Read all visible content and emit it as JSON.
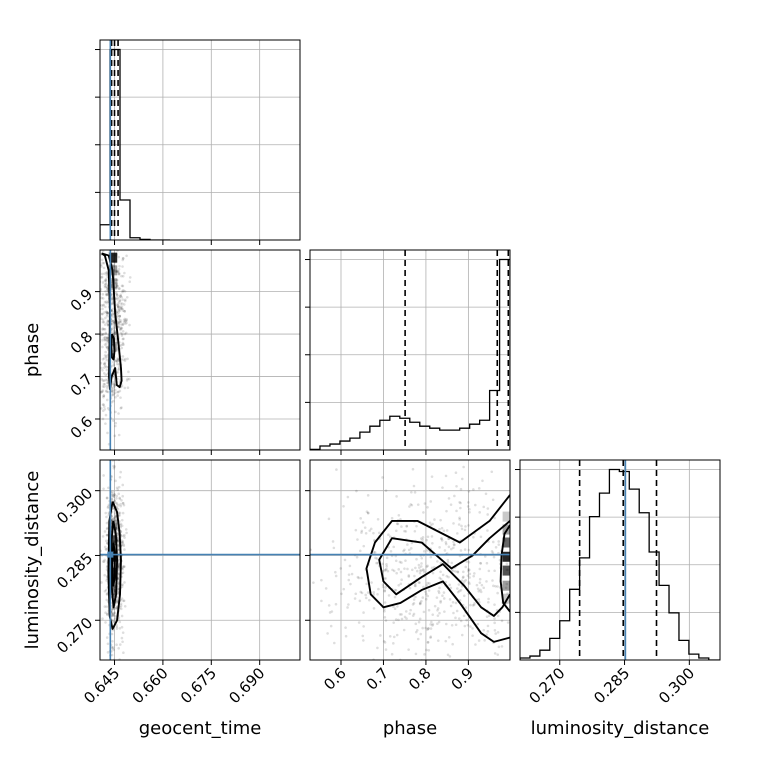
{
  "chart_data": {
    "type": "corner",
    "parameters": [
      "geocent_time",
      "phase",
      "luminosity_distance"
    ],
    "axis_labels": {
      "geocent_time": "geocent_time",
      "phase": "phase",
      "luminosity_distance": "luminosity_distance"
    },
    "ranges": {
      "geocent_time": [
        0.6405,
        0.7025
      ],
      "phase": [
        0.527,
        0.998
      ],
      "luminosity_distance": [
        0.2608,
        0.3071
      ]
    },
    "ticks": {
      "geocent_time": [
        {
          "value": 0.645,
          "label": "0.645"
        },
        {
          "value": 0.66,
          "label": "0.660"
        },
        {
          "value": 0.675,
          "label": "0.675"
        },
        {
          "value": 0.69,
          "label": "0.690"
        }
      ],
      "phase": [
        {
          "value": 0.6,
          "label": "0.6"
        },
        {
          "value": 0.7,
          "label": "0.7"
        },
        {
          "value": 0.8,
          "label": "0.8"
        },
        {
          "value": 0.9,
          "label": "0.9"
        }
      ],
      "luminosity_distance": [
        {
          "value": 0.27,
          "label": "0.270"
        },
        {
          "value": 0.285,
          "label": "0.285"
        },
        {
          "value": 0.3,
          "label": "0.300"
        }
      ]
    },
    "truths": {
      "geocent_time": 0.6437,
      "luminosity_distance": 0.2852
    },
    "quantiles": {
      "geocent_time": [
        0.6441,
        0.645,
        0.6461
      ],
      "phase": [
        0.751,
        0.968,
        0.994
      ],
      "luminosity_distance": [
        0.2746,
        0.2847,
        0.2924
      ]
    },
    "histograms": {
      "geocent_time": {
        "edges": [
          0.6405,
          0.6436,
          0.6467,
          0.6498,
          0.6529,
          0.656,
          0.6591,
          0.6622
        ],
        "counts": [
          0.08,
          1.0,
          0.21,
          0.012,
          0.003,
          0.0,
          0.0
        ]
      },
      "phase": {
        "edges": [
          0.527,
          0.5505,
          0.574,
          0.5975,
          0.621,
          0.6445,
          0.668,
          0.6915,
          0.715,
          0.7385,
          0.762,
          0.7855,
          0.809,
          0.8325,
          0.856,
          0.8795,
          0.903,
          0.9265,
          0.95,
          0.9735,
          0.998
        ],
        "counts": [
          0.003,
          0.02,
          0.03,
          0.045,
          0.06,
          0.09,
          0.12,
          0.15,
          0.17,
          0.16,
          0.14,
          0.12,
          0.11,
          0.1,
          0.1,
          0.11,
          0.13,
          0.15,
          0.3,
          0.96
        ]
      },
      "luminosity_distance": {
        "edges": [
          0.2608,
          0.2631,
          0.2654,
          0.2677,
          0.27,
          0.2723,
          0.2746,
          0.2769,
          0.2792,
          0.2815,
          0.2838,
          0.2861,
          0.2884,
          0.2907,
          0.293,
          0.2953,
          0.2976,
          0.2999,
          0.3022,
          0.3045,
          0.3071
        ],
        "counts": [
          0.01,
          0.02,
          0.05,
          0.11,
          0.2,
          0.36,
          0.52,
          0.73,
          0.85,
          0.97,
          0.96,
          0.87,
          0.75,
          0.55,
          0.38,
          0.24,
          0.1,
          0.03,
          0.01,
          0.0
        ]
      }
    },
    "contours_2d": {
      "phase_vs_geocent_time": [
        {
          "x": [
            0.641,
            0.6432,
            0.6444,
            0.6452,
            0.6462,
            0.647,
            0.6472,
            0.6466,
            0.6457,
            0.6452,
            0.6441,
            0.6436,
            0.6433,
            0.6436,
            0.6432,
            0.642,
            0.641
          ],
          "y": [
            0.99,
            0.985,
            0.95,
            0.85,
            0.78,
            0.72,
            0.69,
            0.675,
            0.68,
            0.72,
            0.7,
            0.67,
            0.7,
            0.85,
            0.95,
            0.985,
            0.99
          ]
        },
        {
          "x": [
            0.6442,
            0.6448,
            0.645,
            0.6447,
            0.6442,
            0.644,
            0.6442
          ],
          "y": [
            0.8,
            0.79,
            0.76,
            0.74,
            0.745,
            0.77,
            0.8
          ]
        }
      ],
      "luminosity_distance_vs_geocent_time": [
        {
          "x": [
            0.6444,
            0.6458,
            0.6466,
            0.647,
            0.6467,
            0.6458,
            0.6444,
            0.6435,
            0.6431,
            0.6434,
            0.6444
          ],
          "y": [
            0.2975,
            0.295,
            0.29,
            0.284,
            0.276,
            0.27,
            0.268,
            0.271,
            0.281,
            0.293,
            0.2975
          ]
        },
        {
          "x": [
            0.6446,
            0.6454,
            0.6458,
            0.6455,
            0.6447,
            0.6441,
            0.644,
            0.6446
          ],
          "y": [
            0.293,
            0.29,
            0.284,
            0.276,
            0.273,
            0.278,
            0.288,
            0.293
          ]
        },
        {
          "x": [
            0.6446,
            0.6451,
            0.6451,
            0.6446,
            0.6443,
            0.6446
          ],
          "y": [
            0.288,
            0.286,
            0.28,
            0.278,
            0.283,
            0.288
          ]
        }
      ],
      "luminosity_distance_vs_phase": [
        {
          "x": [
            0.998,
            0.95,
            0.88,
            0.84,
            0.78,
            0.72,
            0.68,
            0.66,
            0.67,
            0.7,
            0.74,
            0.79,
            0.84,
            0.88,
            0.93,
            0.96,
            0.998
          ],
          "y": [
            0.299,
            0.293,
            0.288,
            0.29,
            0.293,
            0.293,
            0.288,
            0.282,
            0.276,
            0.273,
            0.274,
            0.277,
            0.279,
            0.274,
            0.267,
            0.265,
            0.266
          ]
        },
        {
          "x": [
            0.998,
            0.95,
            0.91,
            0.86,
            0.79,
            0.72,
            0.69,
            0.7,
            0.73,
            0.79,
            0.84,
            0.89,
            0.93,
            0.96,
            0.98,
            0.998
          ],
          "y": [
            0.293,
            0.289,
            0.285,
            0.282,
            0.288,
            0.289,
            0.284,
            0.279,
            0.276,
            0.28,
            0.283,
            0.278,
            0.273,
            0.271,
            0.273,
            0.276
          ]
        },
        {
          "x": [
            0.998,
            0.985,
            0.978,
            0.976,
            0.982,
            0.998
          ],
          "y": [
            0.292,
            0.29,
            0.285,
            0.279,
            0.274,
            0.272
          ]
        }
      ]
    },
    "density_2d": {
      "phase_vs_geocent_time": [
        {
          "x": 0.6446,
          "y": 0.98,
          "w": 1.0
        },
        {
          "x": 0.6446,
          "y": 0.95,
          "w": 0.45
        },
        {
          "x": 0.6446,
          "y": 0.92,
          "w": 0.3
        },
        {
          "x": 0.6446,
          "y": 0.77,
          "w": 0.25
        }
      ],
      "luminosity_distance_vs_geocent_time": [
        {
          "x": 0.6446,
          "y": 0.2847,
          "w": 1.0
        },
        {
          "x": 0.6446,
          "y": 0.281,
          "w": 0.85
        },
        {
          "x": 0.6446,
          "y": 0.2885,
          "w": 0.7
        },
        {
          "x": 0.6446,
          "y": 0.277,
          "w": 0.45
        },
        {
          "x": 0.6446,
          "y": 0.292,
          "w": 0.4
        }
      ],
      "luminosity_distance_vs_phase": [
        {
          "x": 0.99,
          "y": 0.2847,
          "w": 1.0
        },
        {
          "x": 0.99,
          "y": 0.2815,
          "w": 0.8
        },
        {
          "x": 0.99,
          "y": 0.288,
          "w": 0.7
        },
        {
          "x": 0.99,
          "y": 0.278,
          "w": 0.45
        },
        {
          "x": 0.99,
          "y": 0.291,
          "w": 0.45
        },
        {
          "x": 0.99,
          "y": 0.275,
          "w": 0.25
        },
        {
          "x": 0.99,
          "y": 0.294,
          "w": 0.25
        }
      ]
    },
    "grid": true,
    "colors": {
      "line": "#000000",
      "truth": "#4682b4",
      "grid": "#b0b0b0",
      "scatter": "#000000"
    }
  }
}
